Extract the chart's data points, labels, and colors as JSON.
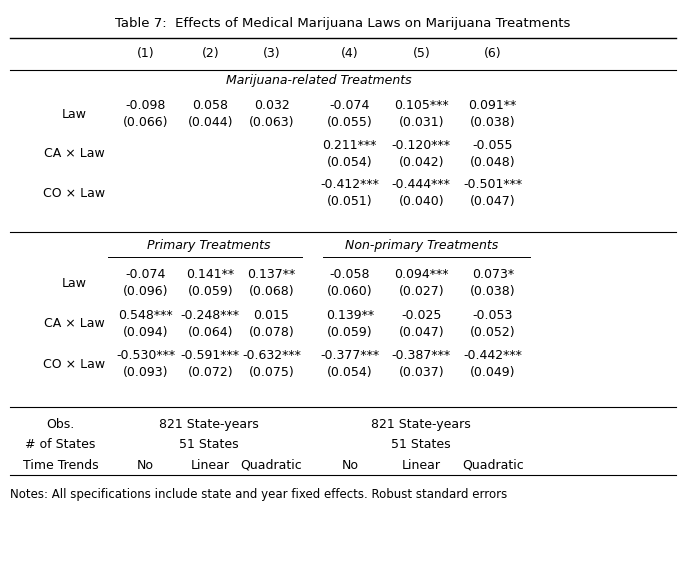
{
  "title": "Table 7:  Effects of Medical Marijuana Laws on Marijuana Treatments",
  "col_headers": [
    "(1)",
    "(2)",
    "(3)",
    "(4)",
    "(5)",
    "(6)"
  ],
  "section1_header": "Marijuana-related Treatments",
  "section2_header": "Primary Treatments",
  "section3_header": "Non-primary Treatments",
  "rows_section1": [
    {
      "label": "Law",
      "values": [
        "-0.098\n(0.066)",
        "0.058\n(0.044)",
        "0.032\n(0.063)",
        "-0.074\n(0.055)",
        "0.105***\n(0.031)",
        "0.091**\n(0.038)"
      ]
    },
    {
      "label": "CA × Law",
      "values": [
        "",
        "",
        "",
        "0.211***\n(0.054)",
        "-0.120***\n(0.042)",
        "-0.055\n(0.048)"
      ]
    },
    {
      "label": "CO × Law",
      "values": [
        "",
        "",
        "",
        "-0.412***\n(0.051)",
        "-0.444***\n(0.040)",
        "-0.501***\n(0.047)"
      ]
    }
  ],
  "rows_section23": [
    {
      "label": "Law",
      "values": [
        "-0.074\n(0.096)",
        "0.141**\n(0.059)",
        "0.137**\n(0.068)",
        "-0.058\n(0.060)",
        "0.094***\n(0.027)",
        "0.073*\n(0.038)"
      ]
    },
    {
      "label": "CA × Law",
      "values": [
        "0.548***\n(0.094)",
        "-0.248***\n(0.064)",
        "0.015\n(0.078)",
        "0.139**\n(0.059)",
        "-0.025\n(0.047)",
        "-0.053\n(0.052)"
      ]
    },
    {
      "label": "CO × Law",
      "values": [
        "-0.530***\n(0.093)",
        "-0.591***\n(0.072)",
        "-0.632***\n(0.075)",
        "-0.377***\n(0.054)",
        "-0.387***\n(0.037)",
        "-0.442***\n(0.049)"
      ]
    }
  ],
  "footer_rows": [
    {
      "label": "Obs.",
      "col13": "821 State-years",
      "col46": "821 State-years",
      "individual": []
    },
    {
      "label": "# of States",
      "col13": "51 States",
      "col46": "51 States",
      "individual": []
    },
    {
      "label": "Time Trends",
      "col13": "",
      "col46": "",
      "individual": [
        "No",
        "Linear",
        "Quadratic",
        "No",
        "Linear",
        "Quadratic"
      ]
    }
  ],
  "note": "Notes: All specifications include state and year fixed effects. Robust standard errors",
  "background_color": "#ffffff",
  "text_color": "#000000",
  "fontsize": 9.0,
  "title_fontsize": 9.5
}
